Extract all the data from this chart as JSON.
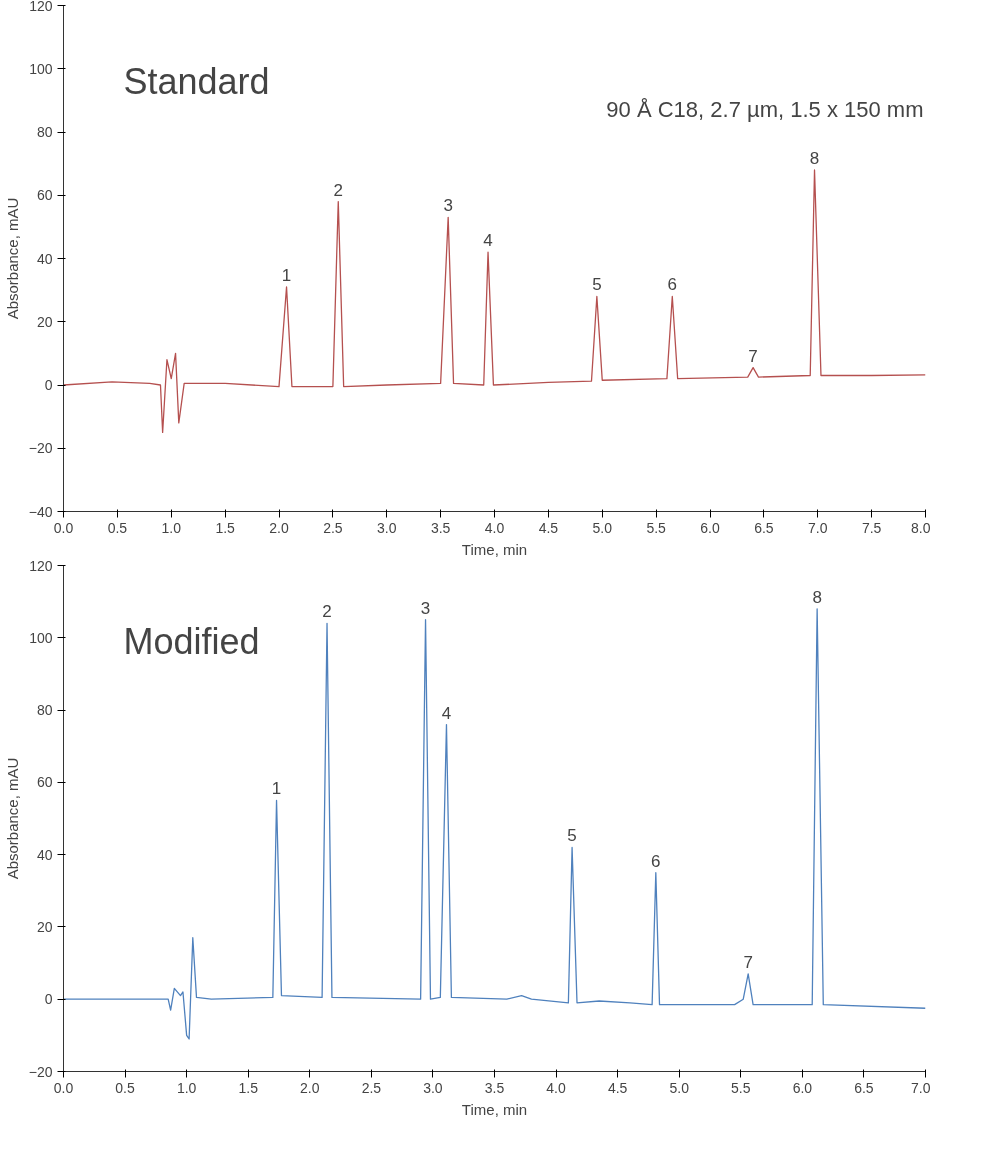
{
  "chart_data": [
    {
      "type": "line",
      "title": "Standard",
      "xlabel": "Time, min",
      "ylabel": "Absorbance, mAU",
      "xlim": [
        0,
        8
      ],
      "xticks": [
        {
          "value": 0,
          "label": "0.0"
        },
        {
          "value": 0.5,
          "label": "0.5"
        },
        {
          "value": 1,
          "label": "1.0"
        },
        {
          "value": 1.5,
          "label": "1.5"
        },
        {
          "value": 2,
          "label": "2.0"
        },
        {
          "value": 2.5,
          "label": "2.5"
        },
        {
          "value": 3,
          "label": "3.0"
        },
        {
          "value": 3.5,
          "label": "3.5"
        },
        {
          "value": 4,
          "label": "4.0"
        },
        {
          "value": 4.5,
          "label": "4.5"
        },
        {
          "value": 5,
          "label": "5.0"
        },
        {
          "value": 5.5,
          "label": "5.5"
        },
        {
          "value": 6,
          "label": "6.0"
        },
        {
          "value": 6.5,
          "label": "6.5"
        },
        {
          "value": 7,
          "label": "7.0"
        },
        {
          "value": 7.5,
          "label": "7.5"
        },
        {
          "value": 8,
          "label": "8.0"
        }
      ],
      "ylim": [
        -40,
        120
      ],
      "yticks": [
        -40,
        -20,
        0,
        20,
        40,
        60,
        80,
        100,
        120
      ],
      "series": [
        {
          "color": "#b5504f",
          "x": [
            0,
            0.45,
            0.8,
            0.9,
            0.92,
            0.96,
            1.0,
            1.04,
            1.07,
            1.12,
            1.5,
            2.0,
            2.07,
            2.12,
            2.5,
            2.55,
            2.6,
            3.0,
            3.5,
            3.57,
            3.62,
            3.9,
            3.94,
            3.99,
            4.5,
            4.9,
            4.95,
            5.0,
            5.6,
            5.65,
            5.7,
            6.35,
            6.4,
            6.45,
            6.93,
            6.97,
            7.03,
            7.5,
            8.0
          ],
          "values": [
            0,
            1,
            0.5,
            0,
            -15,
            8,
            2,
            10,
            -12,
            0.5,
            0.5,
            -0.5,
            31,
            -0.5,
            -0.5,
            58,
            -0.5,
            0,
            0.5,
            53,
            0.5,
            0,
            42,
            0,
            0.8,
            1.2,
            28,
            1.5,
            2,
            28,
            2,
            2.5,
            5.5,
            2.5,
            3,
            68,
            3,
            3,
            3.2
          ]
        }
      ],
      "annotations": [
        "90 Å C18, 2.7 µm, 1.5 x 150 mm",
        {
          "text": "1",
          "x": 2.07,
          "y": 31
        },
        {
          "text": "2",
          "x": 2.55,
          "y": 58
        },
        {
          "text": "3",
          "x": 3.57,
          "y": 53
        },
        {
          "text": "4",
          "x": 3.94,
          "y": 42
        },
        {
          "text": "5",
          "x": 4.95,
          "y": 28
        },
        {
          "text": "6",
          "x": 5.65,
          "y": 28
        },
        {
          "text": "7",
          "x": 6.4,
          "y": 5.5
        },
        {
          "text": "8",
          "x": 6.97,
          "y": 68
        }
      ]
    },
    {
      "type": "line",
      "title": "Modified",
      "xlabel": "Time, min",
      "ylabel": "Absorbance, mAU",
      "xlim": [
        0,
        7
      ],
      "xticks": [
        {
          "value": 0,
          "label": "0.0"
        },
        {
          "value": 0.5,
          "label": "0.5"
        },
        {
          "value": 1,
          "label": "1.0"
        },
        {
          "value": 1.5,
          "label": "1.5"
        },
        {
          "value": 2,
          "label": "2.0"
        },
        {
          "value": 2.5,
          "label": "2.5"
        },
        {
          "value": 3,
          "label": "3.0"
        },
        {
          "value": 3.5,
          "label": "3.5"
        },
        {
          "value": 4,
          "label": "4.0"
        },
        {
          "value": 4.5,
          "label": "4.5"
        },
        {
          "value": 5,
          "label": "5.0"
        },
        {
          "value": 5.5,
          "label": "5.5"
        },
        {
          "value": 6,
          "label": "6.0"
        },
        {
          "value": 6.5,
          "label": "6.5"
        },
        {
          "value": 7,
          "label": "7.0"
        }
      ],
      "ylim": [
        -20,
        120
      ],
      "yticks": [
        -20,
        0,
        20,
        40,
        60,
        80,
        100,
        120
      ],
      "series": [
        {
          "color": "#4f81bd",
          "x": [
            0,
            0.85,
            0.87,
            0.9,
            0.95,
            0.97,
            1.0,
            1.02,
            1.05,
            1.08,
            1.2,
            1.7,
            1.73,
            1.77,
            2.1,
            2.14,
            2.18,
            2.9,
            2.94,
            2.98,
            3.06,
            3.11,
            3.15,
            3.6,
            3.72,
            3.8,
            4.1,
            4.13,
            4.17,
            4.35,
            4.6,
            4.78,
            4.81,
            4.84,
            5.45,
            5.52,
            5.56,
            5.6,
            6.08,
            6.12,
            6.17,
            7.0
          ],
          "values": [
            0,
            0,
            -3,
            3,
            1,
            2,
            -10,
            -11,
            17,
            0.5,
            0,
            0.5,
            55,
            1,
            0.5,
            104,
            0.5,
            0,
            105,
            0,
            0.5,
            76,
            0.5,
            0,
            1,
            0,
            -1,
            42,
            -1,
            -0.5,
            -1,
            -1.5,
            35,
            -1.5,
            -1.5,
            0,
            7,
            -1.5,
            -1.5,
            108,
            -1.5,
            -2.5
          ]
        }
      ],
      "annotations": [
        {
          "text": "1",
          "x": 1.73,
          "y": 55
        },
        {
          "text": "2",
          "x": 2.14,
          "y": 104
        },
        {
          "text": "3",
          "x": 2.94,
          "y": 105
        },
        {
          "text": "4",
          "x": 3.11,
          "y": 76
        },
        {
          "text": "5",
          "x": 4.13,
          "y": 42
        },
        {
          "text": "6",
          "x": 4.81,
          "y": 35
        },
        {
          "text": "7",
          "x": 5.56,
          "y": 7
        },
        {
          "text": "8",
          "x": 6.12,
          "y": 108
        }
      ]
    }
  ]
}
